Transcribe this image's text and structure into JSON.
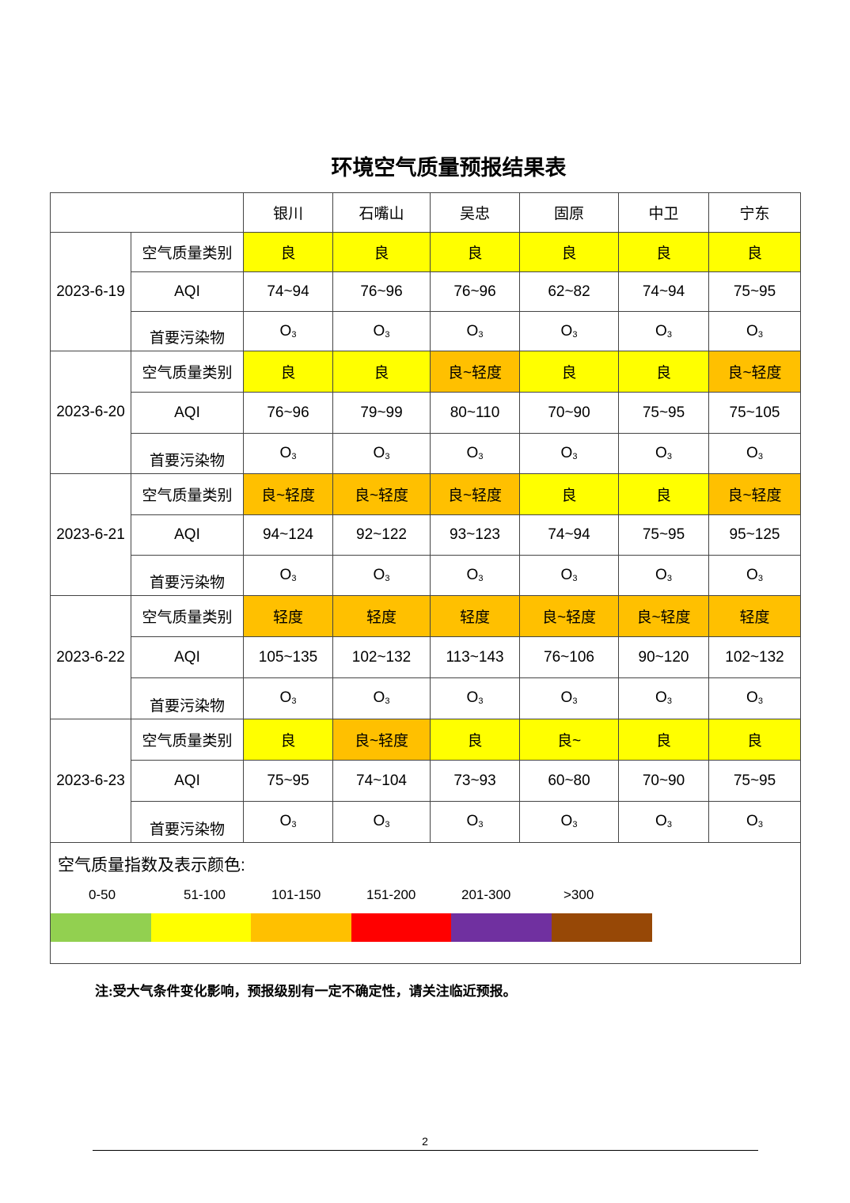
{
  "title": "环境空气质量预报结果表",
  "cities": [
    "银川",
    "石嘴山",
    "吴忠",
    "固原",
    "中卫",
    "宁东"
  ],
  "row_labels": {
    "category": "空气质量类别",
    "aqi": "AQI",
    "pollutant_main": "首要污染物"
  },
  "pollutant": {
    "main": "O",
    "sub": "3"
  },
  "colors": {
    "良": "#FFFF00",
    "良~轻度": "#FFC000",
    "轻度": "#FFC000",
    "良~": "#FFFF00"
  },
  "days": [
    {
      "date": "2023-6-19",
      "category": [
        "良",
        "良",
        "良",
        "良",
        "良",
        "良"
      ],
      "aqi": [
        "74~94",
        "76~96",
        "76~96",
        "62~82",
        "74~94",
        "75~95"
      ]
    },
    {
      "date": "2023-6-20",
      "category": [
        "良",
        "良",
        "良~轻度",
        "良",
        "良",
        "良~轻度"
      ],
      "aqi": [
        "76~96",
        "79~99",
        "80~110",
        "70~90",
        "75~95",
        "75~105"
      ]
    },
    {
      "date": "2023-6-21",
      "category": [
        "良~轻度",
        "良~轻度",
        "良~轻度",
        "良",
        "良",
        "良~轻度"
      ],
      "aqi": [
        "94~124",
        "92~122",
        "93~123",
        "74~94",
        "75~95",
        "95~125"
      ]
    },
    {
      "date": "2023-6-22",
      "category": [
        "轻度",
        "轻度",
        "轻度",
        "良~轻度",
        "良~轻度",
        "轻度"
      ],
      "aqi": [
        "105~135",
        "102~132",
        "113~143",
        "76~106",
        "90~120",
        "102~132"
      ]
    },
    {
      "date": "2023-6-23",
      "category": [
        "良",
        "良~轻度",
        "良",
        "良~",
        "良",
        "良"
      ],
      "aqi": [
        "75~95",
        "74~104",
        "73~93",
        "60~80",
        "70~90",
        "75~95"
      ]
    }
  ],
  "legend": {
    "title": "空气质量指数及表示颜色:",
    "items": [
      {
        "range": "0-50",
        "color": "#92D050"
      },
      {
        "range": "51-100",
        "color": "#FFFF00"
      },
      {
        "range": "101-150",
        "color": "#FFC000"
      },
      {
        "range": "151-200",
        "color": "#FF0000"
      },
      {
        "range": "201-300",
        "color": "#7030A0"
      },
      {
        "range": ">300",
        "color": "#974806"
      }
    ]
  },
  "note": "注:受大气条件变化影响，预报级别有一定不确定性，请关注临近预报。",
  "page_number": "2"
}
